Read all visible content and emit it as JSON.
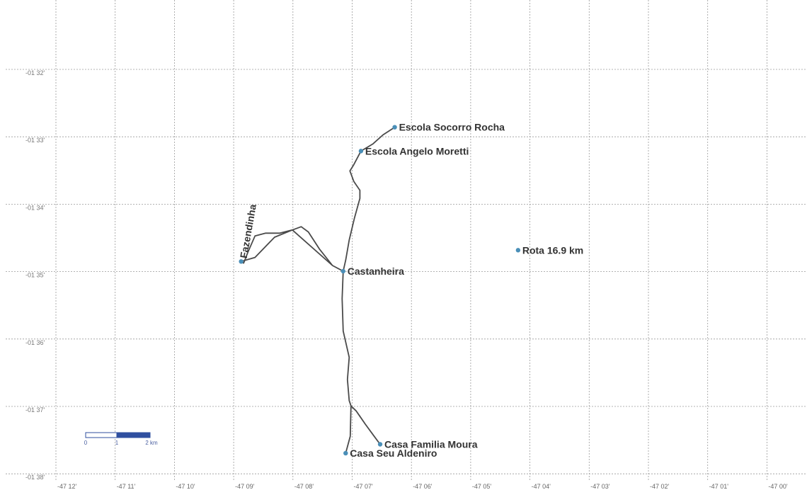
{
  "map": {
    "lat_ticks": [
      "-01 32'",
      "-01 33'",
      "-01 34'",
      "-01 35'",
      "-01 36'",
      "-01 37'",
      "-01 38'"
    ],
    "lon_ticks": [
      "-47 12'",
      "-47 11'",
      "-47 10'",
      "-47 09'",
      "-47 08'",
      "-47 07'",
      "-47 06'",
      "-47 05'",
      "-47 04'",
      "-47 03'",
      "-47 02'",
      "-47 01'",
      "-47 00'"
    ],
    "lat_range": [
      -1.6333,
      -1.5333
    ],
    "lon_range": [
      -47.2,
      -47.0
    ],
    "waypoints": [
      {
        "name": "Escola Socorro Rocha",
        "lon": -47.1047,
        "lat": -1.5476
      },
      {
        "name": "Escola Angelo Moretti",
        "lon": -47.1142,
        "lat": -1.5535
      },
      {
        "name": "Fazendinha",
        "lon": -47.1479,
        "lat": -1.5808,
        "rotated": true
      },
      {
        "name": "Castanheira",
        "lon": -47.1192,
        "lat": -1.5832
      },
      {
        "name": "Rota 16.9 km",
        "lon": -47.07,
        "lat": -1.578
      },
      {
        "name": "Casa Familia Moura",
        "lon": -47.1088,
        "lat": -1.626
      },
      {
        "name": "Casa Seu Aldeniro",
        "lon": -47.1185,
        "lat": -1.6282
      }
    ],
    "track": [
      [
        -47.1047,
        -1.5476
      ],
      [
        -47.108,
        -1.5495
      ],
      [
        -47.1108,
        -1.5517
      ],
      [
        -47.1142,
        -1.5535
      ],
      [
        -47.1163,
        -1.557
      ],
      [
        -47.1173,
        -1.5584
      ],
      [
        -47.1162,
        -1.561
      ],
      [
        -47.1145,
        -1.5632
      ],
      [
        -47.1145,
        -1.5652
      ],
      [
        -47.116,
        -1.57
      ],
      [
        -47.1175,
        -1.5755
      ],
      [
        -47.1185,
        -1.5805
      ],
      [
        -47.1192,
        -1.5832
      ],
      [
        -47.1222,
        -1.5818
      ],
      [
        -47.1258,
        -1.5778
      ],
      [
        -47.129,
        -1.5735
      ],
      [
        -47.131,
        -1.5722
      ],
      [
        -47.1335,
        -1.573
      ],
      [
        -47.137,
        -1.5738
      ],
      [
        -47.141,
        -1.5738
      ],
      [
        -47.144,
        -1.5745
      ],
      [
        -47.146,
        -1.5785
      ],
      [
        -47.1472,
        -1.5812
      ],
      [
        -47.1479,
        -1.5808
      ],
      [
        -47.144,
        -1.5798
      ],
      [
        -47.1385,
        -1.5748
      ],
      [
        -47.1335,
        -1.573
      ],
      [
        -47.1222,
        -1.5818
      ],
      [
        -47.1192,
        -1.5832
      ],
      [
        -47.1195,
        -1.59
      ],
      [
        -47.1192,
        -1.598
      ],
      [
        -47.1175,
        -1.6045
      ],
      [
        -47.118,
        -1.61
      ],
      [
        -47.1175,
        -1.6152
      ],
      [
        -47.117,
        -1.6165
      ],
      [
        -47.1155,
        -1.6178
      ],
      [
        -47.113,
        -1.621
      ],
      [
        -47.1105,
        -1.624
      ],
      [
        -47.1088,
        -1.626
      ],
      [
        -47.1105,
        -1.624
      ],
      [
        -47.113,
        -1.621
      ],
      [
        -47.1155,
        -1.6178
      ],
      [
        -47.117,
        -1.6165
      ],
      [
        -47.1172,
        -1.624
      ],
      [
        -47.1185,
        -1.6282
      ]
    ],
    "scale_bar": {
      "labels": [
        "0",
        "1",
        "2 km"
      ],
      "fill_color": "#2f4f9f"
    },
    "colors": {
      "track": "#4a4a4a",
      "waypoint": "#4a8fb8",
      "grid": "#9a9a9a"
    }
  }
}
